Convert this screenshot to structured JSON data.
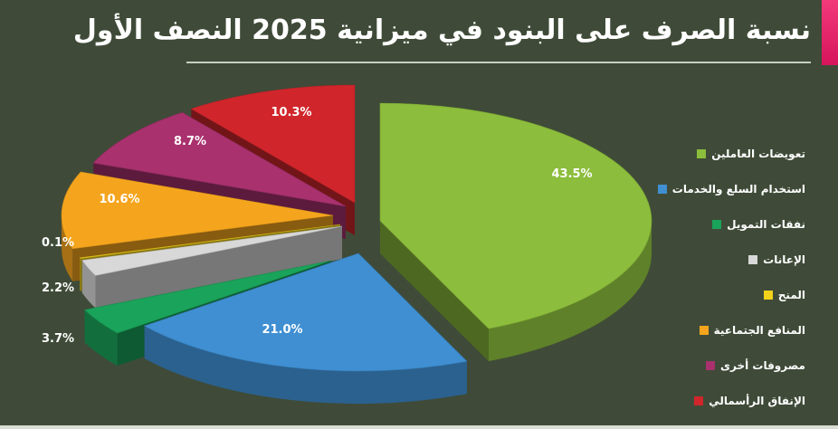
{
  "title": "نسبة الصرف على البنود في ميزانية 2025 النصف الأول",
  "colors": {
    "background": "#3f4b38",
    "accent": "#e8286b"
  },
  "chart_data": {
    "type": "pie",
    "title": "نسبة الصرف على البنود في ميزانية 2025 النصف الأول",
    "legend_position": "right",
    "slices": [
      {
        "name": "تعويضات العاملين",
        "value": 43.5,
        "label": "43.5%",
        "color": "#8cbd3c"
      },
      {
        "name": "استخدام السلع والخدمات",
        "value": 21.0,
        "label": "21.0%",
        "color": "#3f8fd2"
      },
      {
        "name": "نفقات التمويل",
        "value": 3.7,
        "label": "3.7%",
        "color": "#1aa35a"
      },
      {
        "name": "الإعانات",
        "value": 2.2,
        "label": "2.2%",
        "color": "#d8d8d8"
      },
      {
        "name": "المنح",
        "value": 0.1,
        "label": "0.1%",
        "color": "#f2d21b"
      },
      {
        "name": "المنافع الجتماعية",
        "value": 10.6,
        "label": "10.6%",
        "color": "#f5a51d"
      },
      {
        "name": "مصروفات أخرى",
        "value": 8.7,
        "label": "8.7%",
        "color": "#a8316e"
      },
      {
        "name": "الإنفاق الرأسمالي",
        "value": 10.3,
        "label": "10.3%",
        "color": "#d0262b"
      }
    ]
  }
}
